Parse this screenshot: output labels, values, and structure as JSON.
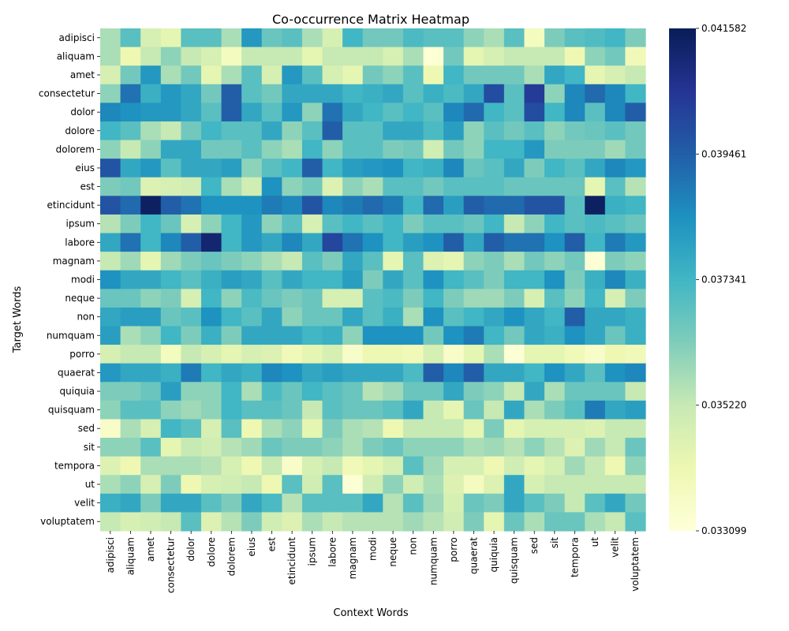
{
  "chart_data": {
    "type": "heatmap",
    "title": "Co-occurrence Matrix Heatmap",
    "xlabel": "Context Words",
    "ylabel": "Target Words",
    "x_categories": [
      "adipisci",
      "aliquam",
      "amet",
      "consectetur",
      "dolor",
      "dolore",
      "dolorem",
      "eius",
      "est",
      "etincidunt",
      "ipsum",
      "labore",
      "magnam",
      "modi",
      "neque",
      "non",
      "numquam",
      "porro",
      "quaerat",
      "quiquia",
      "quisquam",
      "sed",
      "sit",
      "tempora",
      "ut",
      "velit",
      "voluptatem"
    ],
    "y_categories": [
      "adipisci",
      "aliquam",
      "amet",
      "consectetur",
      "dolor",
      "dolore",
      "dolorem",
      "eius",
      "est",
      "etincidunt",
      "ipsum",
      "labore",
      "magnam",
      "modi",
      "neque",
      "non",
      "numquam",
      "porro",
      "quaerat",
      "quiquia",
      "quisquam",
      "sed",
      "sit",
      "tempora",
      "ut",
      "velit",
      "voluptatem"
    ],
    "colorbar": {
      "min": 0.033099,
      "max": 0.041582,
      "ticks": [
        "0.041582",
        "0.039461",
        "0.037341",
        "0.035220",
        "0.033099"
      ],
      "tick_values": [
        0.041582,
        0.039461,
        0.037341,
        0.03522,
        0.033099
      ],
      "colormap": "YlGnBu"
    },
    "values": [
      [
        0.3,
        0.45,
        0.2,
        0.15,
        0.45,
        0.45,
        0.3,
        0.6,
        0.42,
        0.45,
        0.3,
        0.2,
        0.5,
        0.4,
        0.4,
        0.48,
        0.45,
        0.45,
        0.35,
        0.3,
        0.45,
        0.08,
        0.38,
        0.45,
        0.47,
        0.5,
        0.38
      ],
      [
        0.3,
        0.12,
        0.25,
        0.35,
        0.25,
        0.2,
        0.08,
        0.25,
        0.25,
        0.25,
        0.15,
        0.25,
        0.25,
        0.25,
        0.2,
        0.3,
        0.02,
        0.4,
        0.15,
        0.2,
        0.25,
        0.25,
        0.25,
        0.12,
        0.35,
        0.4,
        0.1
      ],
      [
        0.2,
        0.4,
        0.6,
        0.3,
        0.4,
        0.15,
        0.3,
        0.45,
        0.2,
        0.6,
        0.45,
        0.2,
        0.15,
        0.4,
        0.35,
        0.45,
        0.12,
        0.5,
        0.4,
        0.4,
        0.4,
        0.3,
        0.55,
        0.5,
        0.15,
        0.2,
        0.25
      ],
      [
        0.35,
        0.7,
        0.52,
        0.6,
        0.55,
        0.4,
        0.75,
        0.45,
        0.4,
        0.55,
        0.55,
        0.55,
        0.5,
        0.52,
        0.55,
        0.45,
        0.52,
        0.48,
        0.55,
        0.8,
        0.45,
        0.85,
        0.35,
        0.65,
        0.72,
        0.65,
        0.5
      ],
      [
        0.65,
        0.62,
        0.6,
        0.6,
        0.55,
        0.45,
        0.75,
        0.55,
        0.45,
        0.6,
        0.35,
        0.7,
        0.55,
        0.5,
        0.45,
        0.5,
        0.45,
        0.65,
        0.72,
        0.5,
        0.45,
        0.8,
        0.5,
        0.65,
        0.45,
        0.65,
        0.75
      ],
      [
        0.5,
        0.45,
        0.3,
        0.25,
        0.4,
        0.5,
        0.45,
        0.45,
        0.55,
        0.35,
        0.45,
        0.75,
        0.45,
        0.45,
        0.55,
        0.55,
        0.48,
        0.58,
        0.35,
        0.45,
        0.4,
        0.45,
        0.35,
        0.4,
        0.42,
        0.45,
        0.4
      ],
      [
        0.35,
        0.25,
        0.35,
        0.55,
        0.55,
        0.4,
        0.4,
        0.45,
        0.35,
        0.3,
        0.5,
        0.35,
        0.45,
        0.45,
        0.38,
        0.4,
        0.22,
        0.4,
        0.35,
        0.5,
        0.5,
        0.6,
        0.38,
        0.38,
        0.38,
        0.32,
        0.4
      ],
      [
        0.78,
        0.55,
        0.6,
        0.45,
        0.55,
        0.55,
        0.58,
        0.35,
        0.45,
        0.5,
        0.75,
        0.5,
        0.58,
        0.6,
        0.62,
        0.5,
        0.52,
        0.65,
        0.42,
        0.45,
        0.55,
        0.38,
        0.5,
        0.45,
        0.55,
        0.65,
        0.6
      ],
      [
        0.38,
        0.4,
        0.18,
        0.2,
        0.22,
        0.5,
        0.3,
        0.22,
        0.62,
        0.35,
        0.4,
        0.18,
        0.35,
        0.3,
        0.45,
        0.45,
        0.4,
        0.45,
        0.45,
        0.45,
        0.42,
        0.42,
        0.42,
        0.42,
        0.15,
        0.45,
        0.28
      ],
      [
        0.78,
        0.72,
        0.98,
        0.75,
        0.7,
        0.62,
        0.62,
        0.62,
        0.68,
        0.65,
        0.78,
        0.65,
        0.68,
        0.72,
        0.68,
        0.5,
        0.72,
        0.58,
        0.75,
        0.72,
        0.72,
        0.78,
        0.78,
        0.45,
        0.98,
        0.52,
        0.5
      ],
      [
        0.28,
        0.38,
        0.5,
        0.42,
        0.2,
        0.35,
        0.5,
        0.6,
        0.35,
        0.45,
        0.2,
        0.45,
        0.5,
        0.45,
        0.5,
        0.38,
        0.45,
        0.45,
        0.42,
        0.5,
        0.25,
        0.35,
        0.5,
        0.45,
        0.48,
        0.45,
        0.42
      ],
      [
        0.55,
        0.7,
        0.5,
        0.65,
        0.75,
        0.95,
        0.5,
        0.6,
        0.55,
        0.65,
        0.55,
        0.82,
        0.7,
        0.62,
        0.5,
        0.58,
        0.62,
        0.75,
        0.55,
        0.75,
        0.7,
        0.7,
        0.62,
        0.75,
        0.5,
        0.68,
        0.6
      ],
      [
        0.25,
        0.32,
        0.15,
        0.32,
        0.38,
        0.42,
        0.38,
        0.35,
        0.3,
        0.25,
        0.45,
        0.38,
        0.55,
        0.45,
        0.15,
        0.45,
        0.18,
        0.15,
        0.35,
        0.38,
        0.3,
        0.4,
        0.35,
        0.4,
        0.02,
        0.38,
        0.35
      ],
      [
        0.62,
        0.55,
        0.55,
        0.5,
        0.45,
        0.52,
        0.58,
        0.55,
        0.45,
        0.55,
        0.5,
        0.5,
        0.58,
        0.38,
        0.55,
        0.45,
        0.62,
        0.5,
        0.45,
        0.38,
        0.5,
        0.5,
        0.62,
        0.38,
        0.52,
        0.65,
        0.52
      ],
      [
        0.42,
        0.42,
        0.35,
        0.38,
        0.2,
        0.5,
        0.35,
        0.48,
        0.42,
        0.38,
        0.42,
        0.2,
        0.2,
        0.45,
        0.48,
        0.38,
        0.5,
        0.38,
        0.32,
        0.32,
        0.38,
        0.2,
        0.45,
        0.35,
        0.5,
        0.2,
        0.38
      ],
      [
        0.55,
        0.58,
        0.58,
        0.42,
        0.45,
        0.62,
        0.5,
        0.45,
        0.55,
        0.35,
        0.42,
        0.42,
        0.55,
        0.45,
        0.52,
        0.3,
        0.62,
        0.45,
        0.5,
        0.55,
        0.62,
        0.55,
        0.5,
        0.75,
        0.55,
        0.55,
        0.52
      ],
      [
        0.58,
        0.3,
        0.35,
        0.5,
        0.38,
        0.52,
        0.38,
        0.55,
        0.55,
        0.55,
        0.5,
        0.52,
        0.35,
        0.62,
        0.62,
        0.62,
        0.4,
        0.62,
        0.68,
        0.5,
        0.4,
        0.55,
        0.52,
        0.62,
        0.55,
        0.42,
        0.52
      ],
      [
        0.2,
        0.25,
        0.25,
        0.08,
        0.25,
        0.2,
        0.15,
        0.2,
        0.18,
        0.1,
        0.15,
        0.2,
        0.05,
        0.12,
        0.12,
        0.1,
        0.2,
        0.05,
        0.15,
        0.3,
        0.02,
        0.15,
        0.15,
        0.1,
        0.05,
        0.12,
        0.1
      ],
      [
        0.6,
        0.55,
        0.55,
        0.52,
        0.68,
        0.5,
        0.55,
        0.52,
        0.65,
        0.62,
        0.55,
        0.58,
        0.55,
        0.55,
        0.55,
        0.48,
        0.75,
        0.65,
        0.75,
        0.55,
        0.55,
        0.5,
        0.62,
        0.55,
        0.45,
        0.62,
        0.65
      ],
      [
        0.38,
        0.38,
        0.42,
        0.58,
        0.35,
        0.35,
        0.5,
        0.3,
        0.48,
        0.42,
        0.5,
        0.45,
        0.42,
        0.28,
        0.32,
        0.42,
        0.42,
        0.55,
        0.38,
        0.35,
        0.25,
        0.55,
        0.3,
        0.42,
        0.42,
        0.42,
        0.25
      ],
      [
        0.35,
        0.45,
        0.45,
        0.35,
        0.32,
        0.35,
        0.5,
        0.45,
        0.45,
        0.42,
        0.25,
        0.45,
        0.42,
        0.42,
        0.45,
        0.55,
        0.25,
        0.15,
        0.42,
        0.25,
        0.55,
        0.3,
        0.38,
        0.45,
        0.68,
        0.55,
        0.58
      ],
      [
        0.05,
        0.3,
        0.2,
        0.5,
        0.45,
        0.2,
        0.45,
        0.12,
        0.3,
        0.35,
        0.15,
        0.38,
        0.3,
        0.28,
        0.12,
        0.25,
        0.25,
        0.25,
        0.15,
        0.38,
        0.15,
        0.2,
        0.2,
        0.2,
        0.18,
        0.25,
        0.25
      ],
      [
        0.35,
        0.35,
        0.45,
        0.15,
        0.25,
        0.22,
        0.28,
        0.32,
        0.42,
        0.38,
        0.38,
        0.35,
        0.3,
        0.38,
        0.42,
        0.35,
        0.35,
        0.35,
        0.3,
        0.32,
        0.28,
        0.35,
        0.28,
        0.18,
        0.32,
        0.25,
        0.42
      ],
      [
        0.18,
        0.12,
        0.3,
        0.3,
        0.3,
        0.28,
        0.2,
        0.12,
        0.25,
        0.05,
        0.2,
        0.25,
        0.1,
        0.15,
        0.2,
        0.45,
        0.32,
        0.2,
        0.2,
        0.12,
        0.22,
        0.15,
        0.2,
        0.32,
        0.25,
        0.12,
        0.35
      ],
      [
        0.3,
        0.35,
        0.2,
        0.38,
        0.12,
        0.2,
        0.22,
        0.25,
        0.12,
        0.45,
        0.22,
        0.45,
        0.02,
        0.22,
        0.35,
        0.22,
        0.3,
        0.18,
        0.08,
        0.18,
        0.55,
        0.2,
        0.25,
        0.25,
        0.25,
        0.25,
        0.25
      ],
      [
        0.52,
        0.55,
        0.38,
        0.55,
        0.55,
        0.45,
        0.38,
        0.55,
        0.48,
        0.28,
        0.45,
        0.45,
        0.45,
        0.55,
        0.28,
        0.45,
        0.32,
        0.2,
        0.42,
        0.38,
        0.55,
        0.45,
        0.38,
        0.25,
        0.45,
        0.55,
        0.4
      ],
      [
        0.25,
        0.2,
        0.22,
        0.25,
        0.45,
        0.18,
        0.28,
        0.38,
        0.22,
        0.18,
        0.3,
        0.25,
        0.28,
        0.28,
        0.28,
        0.32,
        0.28,
        0.22,
        0.38,
        0.15,
        0.42,
        0.3,
        0.42,
        0.42,
        0.3,
        0.25,
        0.45
      ]
    ]
  }
}
